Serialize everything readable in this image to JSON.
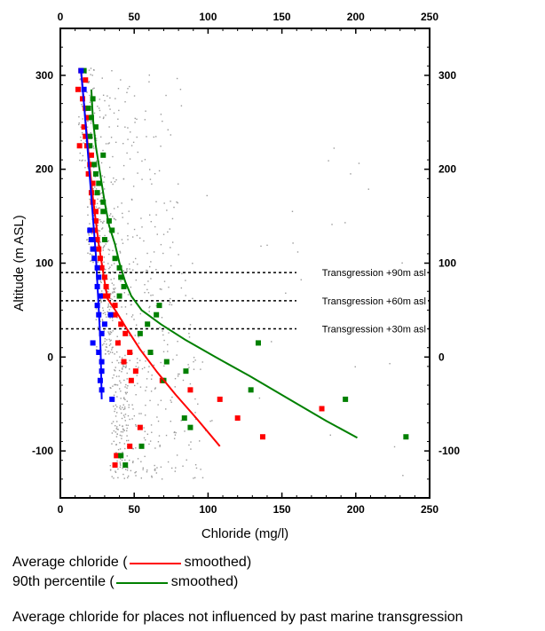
{
  "chart_data": {
    "type": "scatter",
    "xlabel": "Chloride (mg/l)",
    "ylabel": "Altitude (m ASL)",
    "xlim": [
      0,
      250
    ],
    "ylim": [
      -150,
      350
    ],
    "x_ticks": [
      0,
      50,
      100,
      150,
      200,
      250
    ],
    "y_ticks": [
      -100,
      0,
      100,
      200,
      300
    ],
    "grid": false,
    "transgression_lines": [
      {
        "y": 90,
        "label": "Transgression +90m asl"
      },
      {
        "y": 60,
        "label": "Transgression +60m asl"
      },
      {
        "y": 30,
        "label": "Transgression +30m asl"
      }
    ],
    "series": [
      {
        "role": "average",
        "color": "#ff0000",
        "points": [
          [
            14,
            305
          ],
          [
            17,
            295
          ],
          [
            12,
            285
          ],
          [
            15,
            275
          ],
          [
            17,
            265
          ],
          [
            18,
            255
          ],
          [
            16,
            245
          ],
          [
            17,
            235
          ],
          [
            13,
            225
          ],
          [
            18,
            225
          ],
          [
            21,
            215
          ],
          [
            20,
            205
          ],
          [
            19,
            195
          ],
          [
            22,
            185
          ],
          [
            21,
            175
          ],
          [
            22,
            165
          ],
          [
            24,
            155
          ],
          [
            24,
            145
          ],
          [
            23,
            135
          ],
          [
            25,
            125
          ],
          [
            26,
            115
          ],
          [
            27,
            105
          ],
          [
            28,
            95
          ],
          [
            30,
            85
          ],
          [
            31,
            75
          ],
          [
            29,
            65
          ],
          [
            32,
            65
          ],
          [
            37,
            55
          ],
          [
            37,
            45
          ],
          [
            41,
            35
          ],
          [
            44,
            25
          ],
          [
            39,
            15
          ],
          [
            47,
            5
          ],
          [
            43,
            -5
          ],
          [
            51,
            -15
          ],
          [
            48,
            -25
          ],
          [
            69,
            -25
          ],
          [
            88,
            -35
          ],
          [
            108,
            -45
          ],
          [
            120,
            -65
          ],
          [
            54,
            -75
          ],
          [
            47,
            -95
          ],
          [
            38,
            -105
          ],
          [
            37,
            -115
          ],
          [
            177,
            -55
          ],
          [
            137,
            -85
          ]
        ],
        "smoothed": [
          [
            14,
            305
          ],
          [
            16,
            270
          ],
          [
            18,
            235
          ],
          [
            20,
            200
          ],
          [
            22,
            170
          ],
          [
            24,
            145
          ],
          [
            26,
            120
          ],
          [
            28,
            100
          ],
          [
            30,
            80
          ],
          [
            32,
            62
          ],
          [
            38,
            48
          ],
          [
            45,
            30
          ],
          [
            54,
            8
          ],
          [
            65,
            -15
          ],
          [
            78,
            -40
          ],
          [
            92,
            -65
          ],
          [
            108,
            -95
          ]
        ]
      },
      {
        "role": "90th percentile",
        "color": "#008000",
        "points": [
          [
            16,
            305
          ],
          [
            22,
            275
          ],
          [
            19,
            265
          ],
          [
            21,
            255
          ],
          [
            24,
            245
          ],
          [
            20,
            235
          ],
          [
            20,
            225
          ],
          [
            29,
            215
          ],
          [
            23,
            205
          ],
          [
            24,
            195
          ],
          [
            26,
            185
          ],
          [
            25,
            175
          ],
          [
            29,
            165
          ],
          [
            29,
            155
          ],
          [
            33,
            145
          ],
          [
            35,
            135
          ],
          [
            30,
            125
          ],
          [
            37,
            105
          ],
          [
            40,
            95
          ],
          [
            41,
            85
          ],
          [
            43,
            75
          ],
          [
            40,
            65
          ],
          [
            67,
            55
          ],
          [
            65,
            45
          ],
          [
            59,
            35
          ],
          [
            54,
            25
          ],
          [
            134,
            15
          ],
          [
            61,
            5
          ],
          [
            72,
            -5
          ],
          [
            85,
            -15
          ],
          [
            70,
            -25
          ],
          [
            129,
            -35
          ],
          [
            193,
            -45
          ],
          [
            84,
            -65
          ],
          [
            88,
            -75
          ],
          [
            55,
            -95
          ],
          [
            234,
            -85
          ],
          [
            41,
            -105
          ],
          [
            44,
            -115
          ]
        ],
        "smoothed": [
          [
            21,
            285
          ],
          [
            22,
            255
          ],
          [
            24,
            225
          ],
          [
            27,
            195
          ],
          [
            30,
            165
          ],
          [
            33,
            140
          ],
          [
            37,
            120
          ],
          [
            40,
            100
          ],
          [
            44,
            80
          ],
          [
            48,
            65
          ],
          [
            55,
            50
          ],
          [
            68,
            35
          ],
          [
            85,
            18
          ],
          [
            105,
            0
          ],
          [
            128,
            -20
          ],
          [
            155,
            -45
          ],
          [
            180,
            -68
          ],
          [
            201,
            -86
          ]
        ]
      },
      {
        "role": "not influenced by past marine transgression",
        "color": "#0000ff",
        "points": [
          [
            14,
            305
          ],
          [
            16,
            285
          ],
          [
            20,
            135
          ],
          [
            21,
            125
          ],
          [
            22,
            115
          ],
          [
            23,
            105
          ],
          [
            25,
            95
          ],
          [
            26,
            85
          ],
          [
            25,
            75
          ],
          [
            27,
            65
          ],
          [
            25,
            55
          ],
          [
            26,
            45
          ],
          [
            30,
            35
          ],
          [
            28,
            25
          ],
          [
            22,
            15
          ],
          [
            26,
            5
          ],
          [
            28,
            -5
          ],
          [
            28,
            -15
          ],
          [
            27,
            -25
          ],
          [
            28,
            -35
          ],
          [
            35,
            -45
          ],
          [
            34,
            45
          ]
        ],
        "smoothed": [
          [
            14,
            305
          ],
          [
            16,
            270
          ],
          [
            18,
            230
          ],
          [
            20,
            190
          ],
          [
            22,
            150
          ],
          [
            24,
            110
          ],
          [
            25,
            80
          ],
          [
            26,
            50
          ],
          [
            27,
            20
          ],
          [
            27.5,
            -10
          ],
          [
            28,
            -45
          ]
        ]
      }
    ]
  },
  "legend": {
    "average_prefix": "Average chloride (",
    "average_suffix": "smoothed)",
    "p90_prefix": "90th percentile  (",
    "p90_suffix": "smoothed)",
    "note": "Average chloride for places not influenced by past marine transgression"
  },
  "colors": {
    "average": "#ff0000",
    "p90": "#008000",
    "uninfluenced": "#0000ff",
    "background_points": "#9a9a9a"
  }
}
